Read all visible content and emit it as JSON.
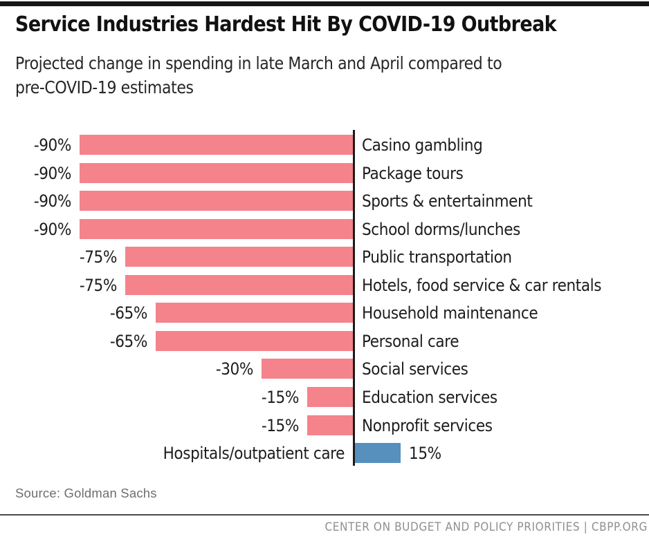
{
  "header": {
    "title": "Service Industries Hardest Hit By COVID-19 Outbreak",
    "subtitle_line1": "Projected change in spending in late March and April compared to",
    "subtitle_line2": "pre-COVID-19 estimates"
  },
  "chart_data": {
    "type": "bar",
    "orientation": "horizontal",
    "categories": [
      "Casino gambling",
      "Package tours",
      "Sports & entertainment",
      "School dorms/lunches",
      "Public transportation",
      "Hotels, food service & car rentals",
      "Household maintenance",
      "Personal care",
      "Social services",
      "Education services",
      "Nonprofit services",
      "Hospitals/outpatient care"
    ],
    "values": [
      -90,
      -90,
      -90,
      -90,
      -75,
      -75,
      -65,
      -65,
      -30,
      -15,
      -15,
      15
    ],
    "value_labels": [
      "-90%",
      "-90%",
      "-90%",
      "-90%",
      "-75%",
      "-75%",
      "-65%",
      "-65%",
      "-30%",
      "-15%",
      "-15%",
      "15%"
    ],
    "title": "Service Industries Hardest Hit By COVID-19 Outbreak",
    "xlabel": "",
    "ylabel": "",
    "xlim": [
      -90,
      15
    ],
    "grid": false,
    "legend": false,
    "colors": {
      "bar_negative": "#F4838C",
      "bar_positive": "#5590BE",
      "axis": "#1B1B1B",
      "accent_bar": "#161616",
      "divider": "#4A4A4A"
    }
  },
  "footer": {
    "source": "Source: Goldman Sachs",
    "org": "CENTER ON BUDGET AND POLICY PRIORITIES | CBPP.ORG"
  }
}
